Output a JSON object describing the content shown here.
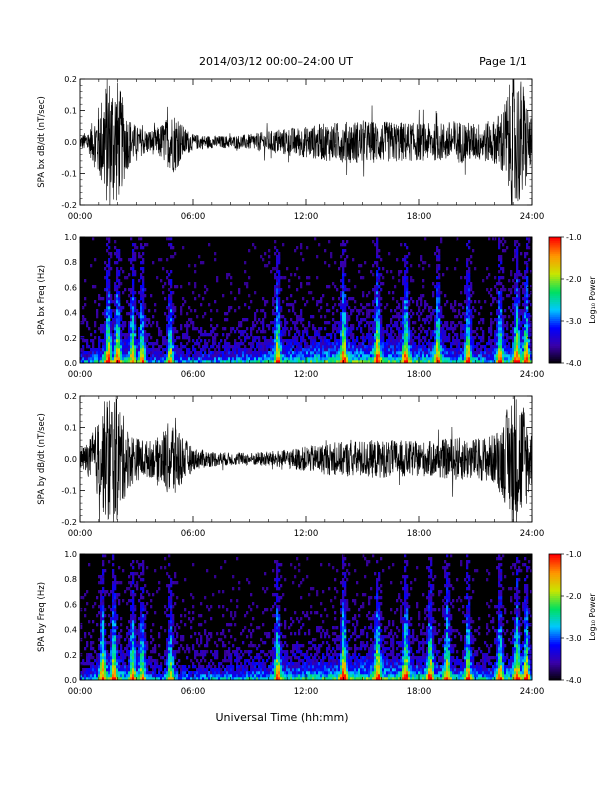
{
  "header": {
    "date_range": "2014/03/12  00:00–24:00 UT",
    "page": "Page 1/1"
  },
  "xaxis_title": "Universal Time (hh:mm)",
  "colorbar": {
    "label": "Log₁₀ Power",
    "ticks": [
      "-1.0",
      "-2.0",
      "-3.0",
      "-4.0"
    ],
    "range": [
      -4.0,
      -1.0
    ],
    "colors": [
      "#000000",
      "#3a00a8",
      "#0000ff",
      "#00c8ff",
      "#00e060",
      "#c8e600",
      "#ff9600",
      "#ff0000"
    ]
  },
  "chart_data": [
    {
      "type": "line",
      "ylabel": "SPA bx dB/dt (nT/sec)",
      "x_ticks": [
        "00:00",
        "06:00",
        "12:00",
        "18:00",
        "24:00"
      ],
      "xlim": [
        0,
        24
      ],
      "ylim": [
        -0.2,
        0.2
      ],
      "y_ticks": [
        "0.2",
        "0.1",
        "0.0",
        "-0.1",
        "-0.2"
      ],
      "line_color": "#000000",
      "envelope": {
        "t": [
          0,
          0.5,
          1.0,
          1.5,
          2.0,
          2.5,
          3.0,
          3.5,
          4.0,
          4.5,
          5.0,
          5.5,
          6.0,
          7.0,
          8.0,
          9.0,
          10.0,
          11.0,
          12.0,
          13.0,
          14.0,
          15.0,
          16.0,
          17.0,
          18.0,
          19.0,
          20.0,
          21.0,
          22.0,
          22.5,
          23.0,
          23.5,
          24.0
        ],
        "amp": [
          0.02,
          0.04,
          0.12,
          0.22,
          0.2,
          0.09,
          0.05,
          0.04,
          0.04,
          0.07,
          0.1,
          0.05,
          0.025,
          0.02,
          0.02,
          0.025,
          0.035,
          0.045,
          0.05,
          0.06,
          0.065,
          0.07,
          0.065,
          0.065,
          0.06,
          0.06,
          0.07,
          0.06,
          0.07,
          0.12,
          0.22,
          0.2,
          0.06
        ]
      }
    },
    {
      "type": "heatmap",
      "ylabel": "SPA bx Freq (Hz)",
      "x_ticks": [
        "00:00",
        "06:00",
        "12:00",
        "18:00",
        "24:00"
      ],
      "xlim": [
        0,
        24
      ],
      "ylim": [
        0.0,
        1.0
      ],
      "y_ticks": [
        "1.0",
        "0.8",
        "0.6",
        "0.4",
        "0.2",
        "0.0"
      ],
      "value_range": [
        -4.0,
        -1.0
      ],
      "bursts": [
        1.5,
        2.0,
        2.8,
        3.3,
        4.8,
        10.5,
        14.0,
        15.8,
        17.3,
        19.0,
        20.6,
        22.3,
        23.2,
        23.7
      ]
    },
    {
      "type": "line",
      "ylabel": "SPA by dB/dt (nT/sec)",
      "x_ticks": [
        "00:00",
        "06:00",
        "12:00",
        "18:00",
        "24:00"
      ],
      "xlim": [
        0,
        24
      ],
      "ylim": [
        -0.2,
        0.2
      ],
      "y_ticks": [
        "0.2",
        "0.1",
        "0.0",
        "-0.1",
        "-0.2"
      ],
      "line_color": "#000000",
      "envelope": {
        "t": [
          0,
          0.5,
          1.0,
          1.5,
          2.0,
          2.5,
          3.0,
          3.5,
          4.0,
          4.5,
          5.0,
          5.5,
          6.0,
          7.0,
          8.0,
          9.0,
          10.0,
          11.0,
          12.0,
          13.0,
          14.0,
          15.0,
          16.0,
          17.0,
          18.0,
          19.0,
          20.0,
          21.0,
          22.0,
          22.5,
          23.0,
          23.5,
          24.0
        ],
        "amp": [
          0.03,
          0.06,
          0.13,
          0.22,
          0.2,
          0.1,
          0.07,
          0.06,
          0.06,
          0.1,
          0.14,
          0.07,
          0.035,
          0.025,
          0.02,
          0.02,
          0.025,
          0.03,
          0.04,
          0.05,
          0.055,
          0.06,
          0.06,
          0.06,
          0.055,
          0.06,
          0.07,
          0.065,
          0.08,
          0.13,
          0.22,
          0.2,
          0.08
        ]
      }
    },
    {
      "type": "heatmap",
      "ylabel": "SPA by Freq (Hz)",
      "x_ticks": [
        "00:00",
        "06:00",
        "12:00",
        "18:00",
        "24:00"
      ],
      "xlim": [
        0,
        24
      ],
      "ylim": [
        0.0,
        1.0
      ],
      "y_ticks": [
        "1.0",
        "0.8",
        "0.6",
        "0.4",
        "0.2",
        "0.0"
      ],
      "value_range": [
        -4.0,
        -1.0
      ],
      "bursts": [
        1.2,
        1.8,
        2.8,
        3.3,
        4.8,
        10.5,
        14.0,
        15.8,
        17.3,
        18.6,
        19.5,
        20.6,
        22.3,
        23.2,
        23.7
      ]
    }
  ]
}
